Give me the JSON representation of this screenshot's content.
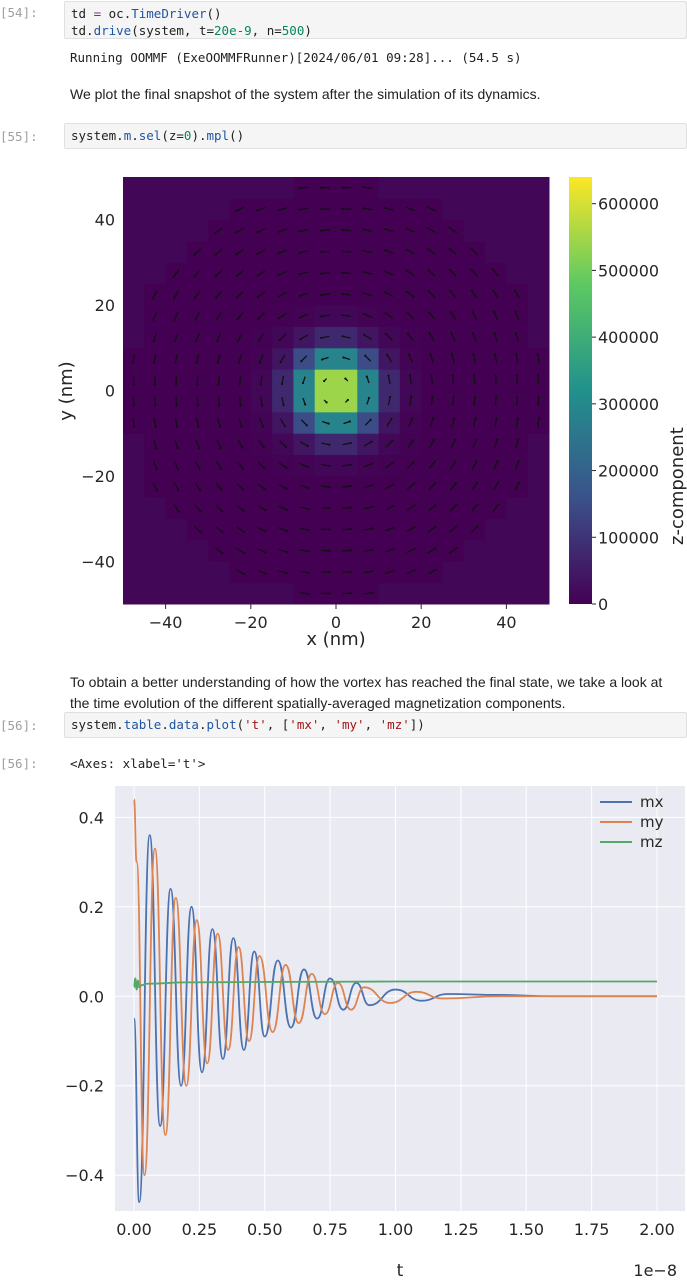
{
  "cells": {
    "c54": {
      "prompt": "[54]:",
      "line1": {
        "a": "td",
        "b": " = oc.",
        "c": "TimeDriver",
        "d": "()"
      },
      "line2": {
        "a": "td.",
        "b": "drive",
        "c": "(system, t=",
        "d": "20e-9",
        "e": ", n=",
        "f": "500",
        "g": ")"
      },
      "output": "Running OOMMF (ExeOOMMFRunner)[2024/06/01 09:28]... (54.5 s)"
    },
    "md1": "We plot the final snapshot of the system after the simulation of its dynamics.",
    "c55": {
      "prompt": "[55]:",
      "code": {
        "a": "system.",
        "b": "m",
        "c": ".",
        "d": "sel",
        "e": "(z=",
        "f": "0",
        "g": ").",
        "h": "mpl",
        "i": "()"
      }
    },
    "md2": "To obtain a better understanding of how the vortex has reached the final state, we take a look at the time evolution of the different spatially-averaged magnetization components.",
    "c56": {
      "prompt": "[56]:",
      "code": {
        "a": "system.",
        "b": "table",
        "c": ".",
        "d": "data",
        "e": ".",
        "f": "plot",
        "g": "(",
        "h": "'t'",
        "i": ", [",
        "j": "'mx'",
        "k": ", ",
        "l": "'my'",
        "m": ", ",
        "n": "'mz'",
        "o": "])"
      },
      "out_prompt": "[56]:",
      "output": "<Axes: xlabel='t'>"
    }
  },
  "chart_data": [
    {
      "type": "heatmap",
      "xlabel": "x (nm)",
      "ylabel": "y (nm)",
      "xlim": [
        -50,
        50
      ],
      "ylim": [
        -50,
        50
      ],
      "x_ticks": [
        "−40",
        "−20",
        "0",
        "20",
        "40"
      ],
      "y_ticks": [
        "40",
        "20",
        "0",
        "−20",
        "−40"
      ],
      "colorbar_label": "z-component",
      "colorbar_ticks": [
        "600000",
        "500000",
        "400000",
        "300000",
        "200000",
        "100000",
        "0"
      ],
      "colorbar_range": [
        0,
        640000
      ],
      "colormap": [
        "#440154",
        "#3b528b",
        "#21918c",
        "#5ec962",
        "#fde725"
      ],
      "vortex": {
        "center": [
          0,
          0
        ],
        "core_value": 640000,
        "core_width_nm": 10,
        "rotation": "counter-clockwise"
      }
    },
    {
      "type": "line",
      "xlabel": "t",
      "x_offset_label": "1e−8",
      "xlim": [
        0,
        2.0
      ],
      "ylim": [
        -0.48,
        0.47
      ],
      "x_ticks": [
        "0.00",
        "0.25",
        "0.50",
        "0.75",
        "1.00",
        "1.25",
        "1.50",
        "1.75",
        "2.00"
      ],
      "y_ticks": [
        "0.4",
        "0.2",
        "0.0",
        "−0.2",
        "−0.4"
      ],
      "background": "#eaeaf2",
      "series": [
        {
          "name": "mx",
          "color": "#4c72b0",
          "x": [
            0.0,
            0.02,
            0.06,
            0.1,
            0.14,
            0.18,
            0.22,
            0.26,
            0.3,
            0.34,
            0.38,
            0.42,
            0.46,
            0.5,
            0.55,
            0.6,
            0.65,
            0.7,
            0.75,
            0.8,
            0.85,
            0.9,
            1.0,
            1.1,
            1.2,
            1.4,
            1.6,
            2.0
          ],
          "y": [
            -0.05,
            -0.46,
            0.36,
            -0.29,
            0.24,
            -0.2,
            0.2,
            -0.17,
            0.15,
            -0.14,
            0.13,
            -0.12,
            0.1,
            -0.09,
            0.08,
            -0.07,
            0.06,
            -0.05,
            0.04,
            -0.03,
            0.03,
            -0.02,
            0.015,
            -0.01,
            0.005,
            0.003,
            0.0,
            0.0
          ]
        },
        {
          "name": "my",
          "color": "#dd8452",
          "x": [
            0.0,
            0.01,
            0.04,
            0.08,
            0.12,
            0.16,
            0.2,
            0.24,
            0.28,
            0.32,
            0.36,
            0.4,
            0.44,
            0.48,
            0.53,
            0.58,
            0.63,
            0.68,
            0.73,
            0.78,
            0.83,
            0.88,
            0.98,
            1.08,
            1.18,
            1.4,
            1.6,
            2.0
          ],
          "y": [
            0.44,
            0.3,
            -0.4,
            0.33,
            -0.31,
            0.22,
            -0.2,
            0.17,
            -0.15,
            0.14,
            -0.12,
            0.11,
            -0.1,
            0.09,
            -0.08,
            0.07,
            -0.06,
            0.05,
            -0.04,
            0.03,
            -0.03,
            0.02,
            -0.015,
            0.01,
            -0.005,
            0.0,
            0.0,
            0.0
          ]
        },
        {
          "name": "mz",
          "color": "#55a868",
          "x": [
            0.0,
            0.005,
            0.01,
            0.015,
            0.02,
            0.03,
            0.05,
            0.2,
            0.5,
            1.0,
            2.0
          ],
          "y": [
            0.02,
            0.04,
            0.015,
            0.035,
            0.02,
            0.025,
            0.028,
            0.031,
            0.032,
            0.033,
            0.033
          ]
        }
      ],
      "legend": {
        "position": "top-right"
      }
    }
  ]
}
